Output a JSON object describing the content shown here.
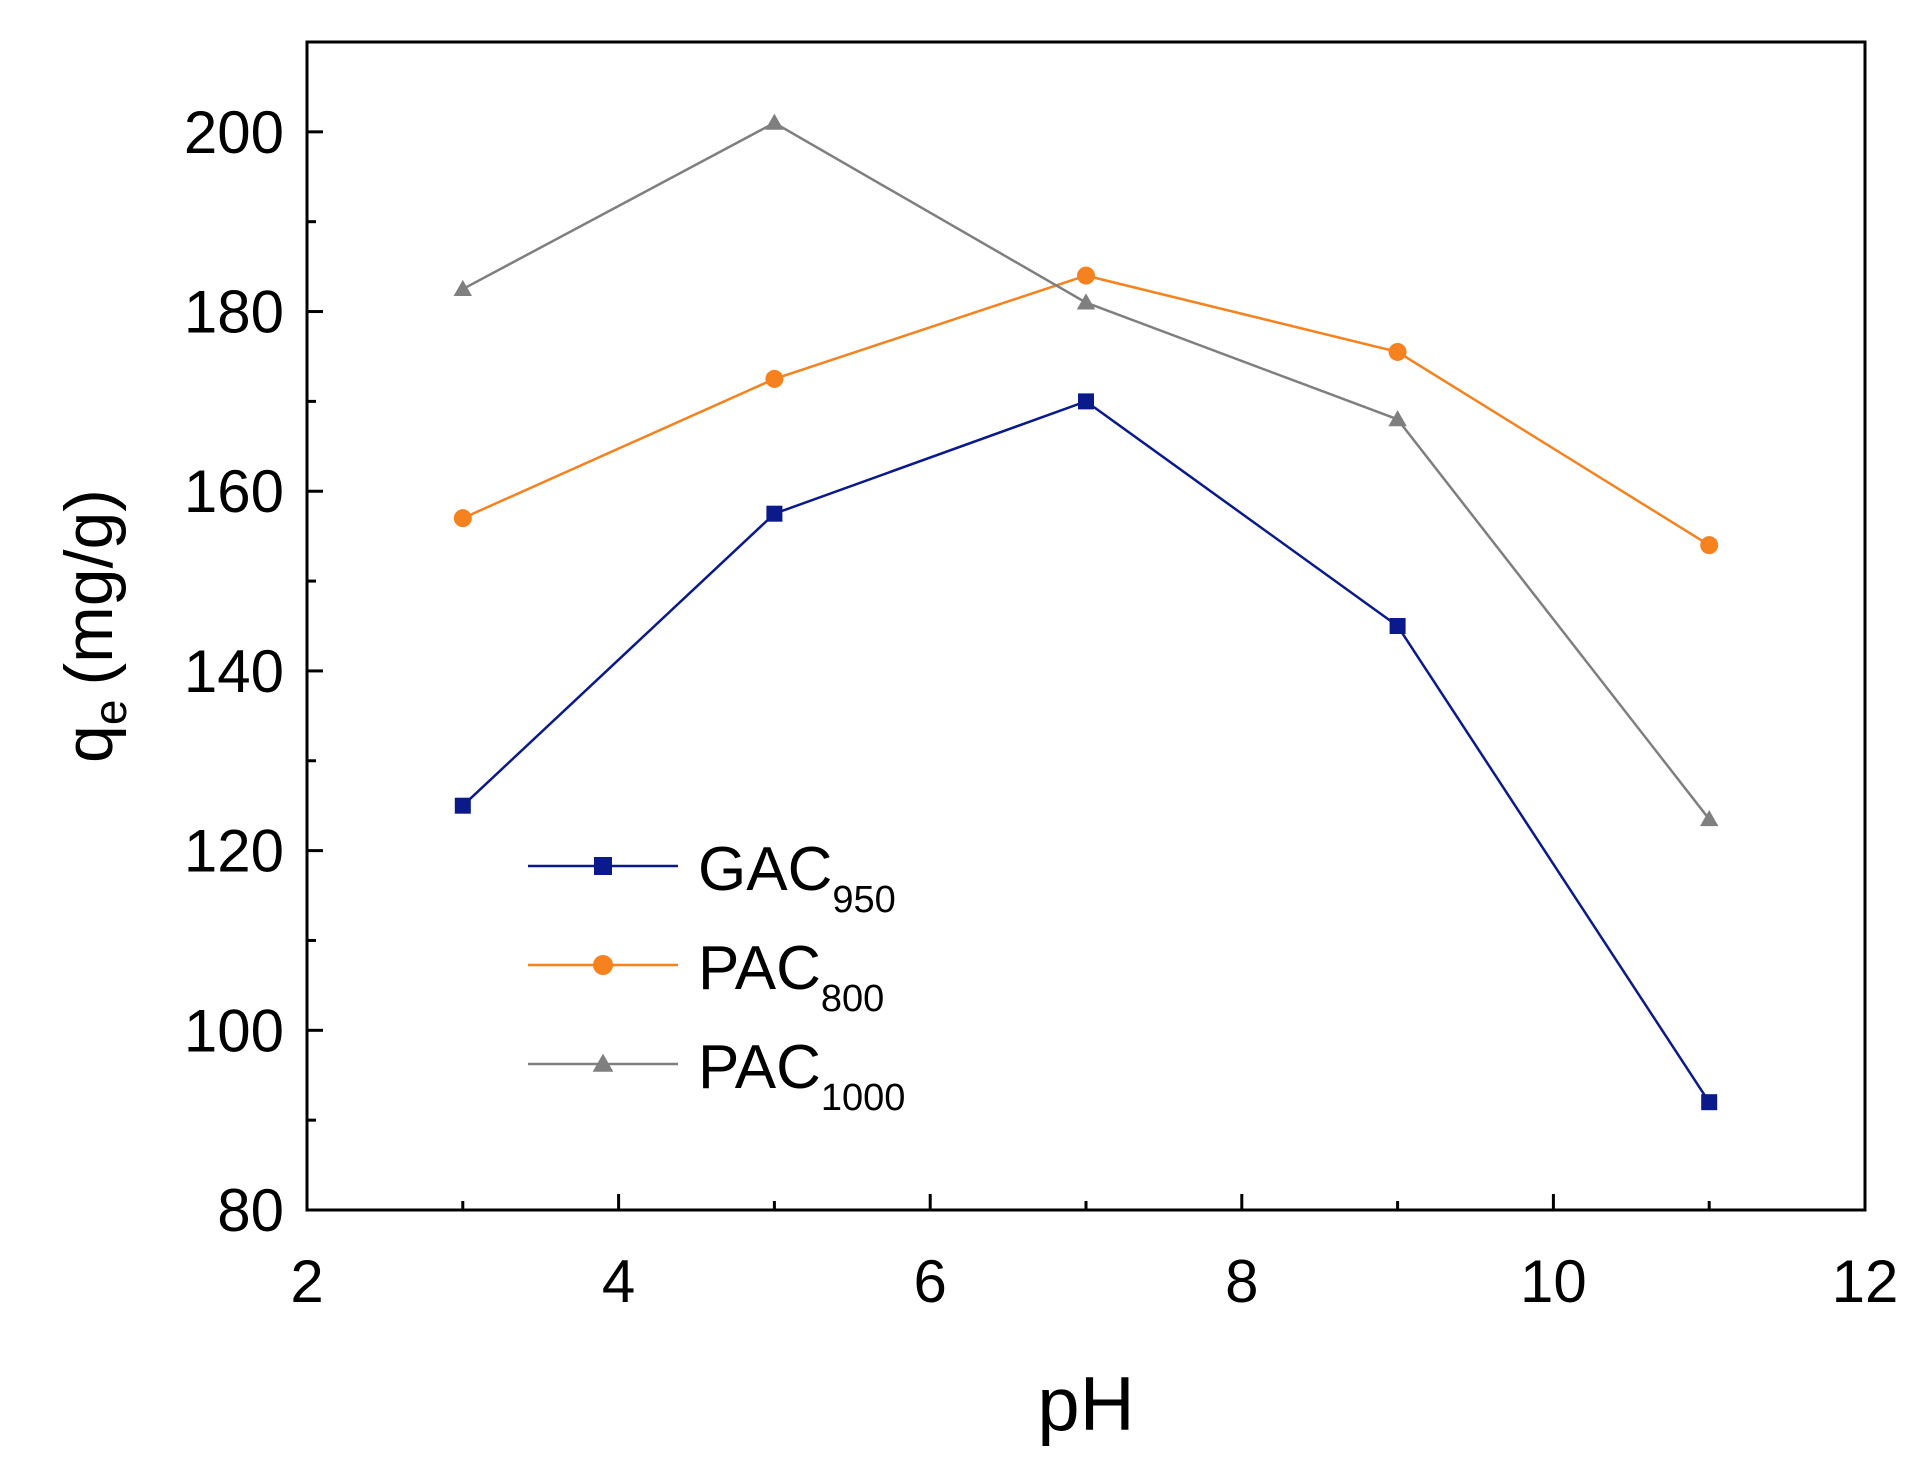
{
  "chart_data": {
    "type": "line",
    "xlabel": "pH",
    "ylabel": {
      "main": "q",
      "sub": "e",
      "unit": "(mg/g)"
    },
    "xlim": [
      2,
      12
    ],
    "ylim": [
      80,
      210
    ],
    "xticks": [
      "2",
      "4",
      "6",
      "8",
      "10",
      "12"
    ],
    "yticks": [
      "80",
      "100",
      "120",
      "140",
      "160",
      "180",
      "200"
    ],
    "x": [
      3,
      5,
      7,
      9,
      11
    ],
    "grid": false,
    "legend_position": "lower-left",
    "series": [
      {
        "name": "GAC",
        "name_sub": "950",
        "color": "#0a1a8a",
        "marker": "square",
        "values": [
          125,
          157.5,
          170,
          145,
          92
        ]
      },
      {
        "name": "PAC",
        "name_sub": "800",
        "color": "#f5821f",
        "marker": "circle",
        "values": [
          157,
          172.5,
          184,
          175.5,
          154
        ]
      },
      {
        "name": "PAC",
        "name_sub": "1000",
        "color": "#7f7f7f",
        "marker": "triangle",
        "values": [
          182.5,
          201,
          181,
          168,
          123.5
        ]
      }
    ]
  }
}
